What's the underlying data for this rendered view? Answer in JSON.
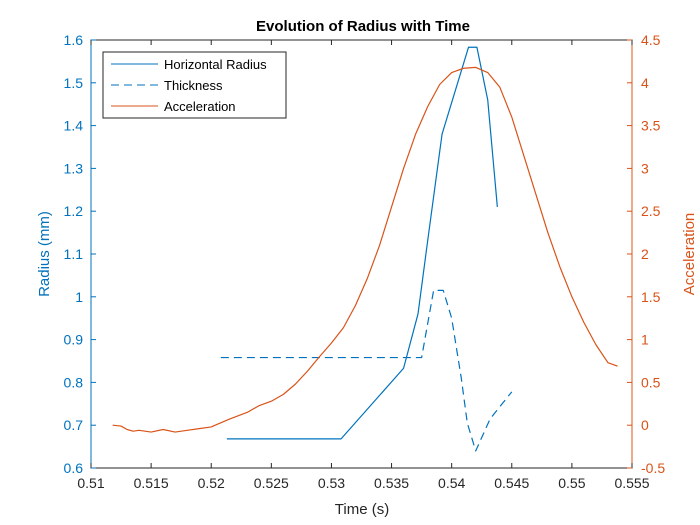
{
  "chart_data": {
    "type": "line",
    "title": "Evolution of Radius with Time",
    "xlabel": "Time (s)",
    "ylabel_left": "Radius (mm)",
    "ylabel_right": "Acceleration",
    "xlim": [
      0.51,
      0.555
    ],
    "ylim_left": [
      0.6,
      1.6
    ],
    "ylim_right": [
      -0.5,
      4.5
    ],
    "x_ticks": [
      "0.51",
      "0.515",
      "0.52",
      "0.525",
      "0.53",
      "0.535",
      "0.54",
      "0.545",
      "0.55",
      "0.555"
    ],
    "y_left_ticks": [
      "0.6",
      "0.7",
      "0.8",
      "0.9",
      "1",
      "1.1",
      "1.2",
      "1.3",
      "1.4",
      "1.5",
      "1.6"
    ],
    "y_right_ticks": [
      "-0.5",
      "0",
      "0.5",
      "1",
      "1.5",
      "2",
      "2.5",
      "3",
      "3.5",
      "4",
      "4.5"
    ],
    "grid": false,
    "legend_position": "top-left",
    "colors": {
      "left_axis": "#0072BD",
      "right_axis": "#D95319",
      "axes_box": "#262626"
    },
    "series": [
      {
        "name": "Horizontal Radius",
        "axis": "left",
        "style": "solid",
        "color": "#0072BD",
        "points": [
          [
            0.5213,
            0.668
          ],
          [
            0.5308,
            0.668
          ],
          [
            0.536,
            0.833
          ],
          [
            0.5372,
            0.96
          ],
          [
            0.538,
            1.13
          ],
          [
            0.5392,
            1.38
          ],
          [
            0.5405,
            1.5
          ],
          [
            0.5414,
            1.583
          ],
          [
            0.5421,
            1.583
          ],
          [
            0.543,
            1.46
          ],
          [
            0.5438,
            1.21
          ]
        ]
      },
      {
        "name": "Thickness",
        "axis": "left",
        "style": "dashed",
        "color": "#0072BD",
        "points": [
          [
            0.5208,
            0.858
          ],
          [
            0.5362,
            0.858
          ],
          [
            0.5375,
            0.858
          ],
          [
            0.5385,
            1.015
          ],
          [
            0.5393,
            1.015
          ],
          [
            0.54,
            0.95
          ],
          [
            0.5408,
            0.81
          ],
          [
            0.5413,
            0.705
          ],
          [
            0.542,
            0.64
          ],
          [
            0.5432,
            0.715
          ],
          [
            0.545,
            0.778
          ]
        ]
      },
      {
        "name": "Acceleration",
        "axis": "right",
        "style": "solid",
        "color": "#D95319",
        "points": [
          [
            0.5118,
            0.0
          ],
          [
            0.5125,
            -0.01
          ],
          [
            0.513,
            -0.05
          ],
          [
            0.5135,
            -0.07
          ],
          [
            0.514,
            -0.06
          ],
          [
            0.515,
            -0.08
          ],
          [
            0.516,
            -0.05
          ],
          [
            0.517,
            -0.08
          ],
          [
            0.518,
            -0.06
          ],
          [
            0.519,
            -0.04
          ],
          [
            0.52,
            -0.02
          ],
          [
            0.5205,
            0.01
          ],
          [
            0.5215,
            0.07
          ],
          [
            0.523,
            0.15
          ],
          [
            0.524,
            0.23
          ],
          [
            0.525,
            0.28
          ],
          [
            0.526,
            0.36
          ],
          [
            0.527,
            0.48
          ],
          [
            0.528,
            0.63
          ],
          [
            0.529,
            0.8
          ],
          [
            0.53,
            0.96
          ],
          [
            0.531,
            1.14
          ],
          [
            0.532,
            1.4
          ],
          [
            0.533,
            1.72
          ],
          [
            0.534,
            2.1
          ],
          [
            0.535,
            2.55
          ],
          [
            0.536,
            3.0
          ],
          [
            0.537,
            3.4
          ],
          [
            0.538,
            3.72
          ],
          [
            0.539,
            3.98
          ],
          [
            0.54,
            4.12
          ],
          [
            0.541,
            4.17
          ],
          [
            0.542,
            4.18
          ],
          [
            0.543,
            4.12
          ],
          [
            0.544,
            3.95
          ],
          [
            0.545,
            3.6
          ],
          [
            0.546,
            3.15
          ],
          [
            0.547,
            2.7
          ],
          [
            0.548,
            2.25
          ],
          [
            0.549,
            1.85
          ],
          [
            0.55,
            1.5
          ],
          [
            0.551,
            1.2
          ],
          [
            0.552,
            0.94
          ],
          [
            0.553,
            0.73
          ],
          [
            0.5538,
            0.69
          ]
        ]
      }
    ]
  }
}
